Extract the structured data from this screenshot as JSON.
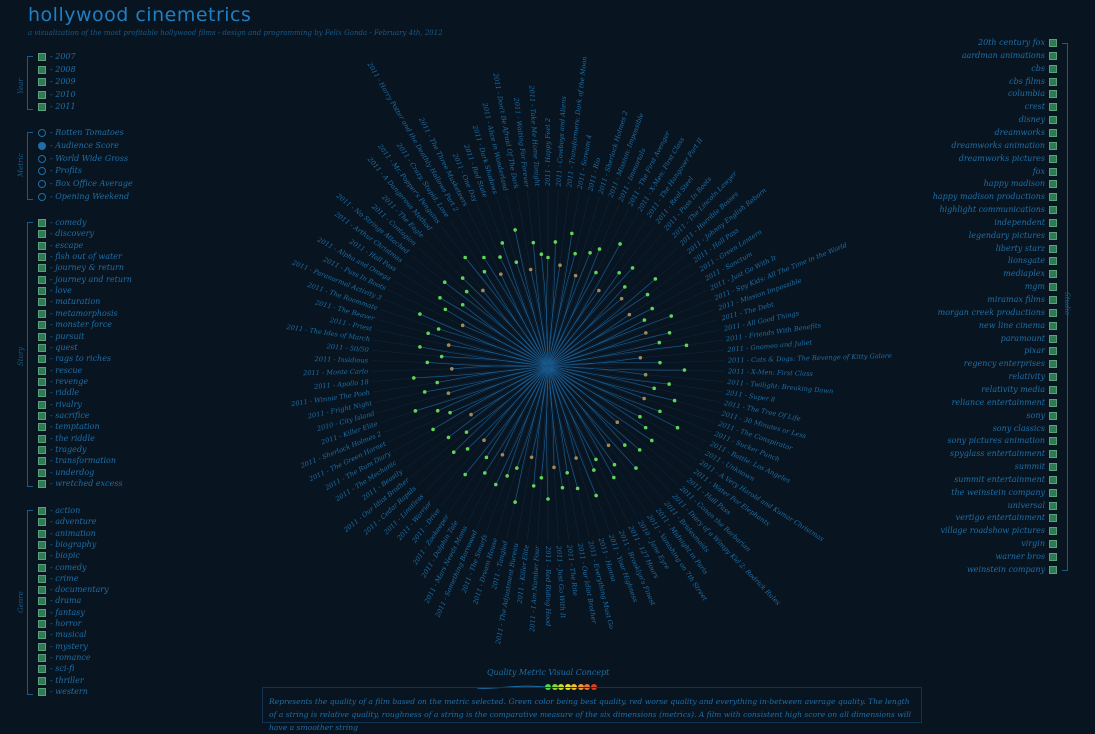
{
  "header": {
    "title": "hollywood cinemetrics",
    "subtitle": "a visualization of the most profitable hollywood films - design and programming by Felix Gonda - February 4th, 2012"
  },
  "filters": {
    "year": {
      "label": "Year",
      "items": [
        "- 2007",
        "- 2008",
        "- 2009",
        "- 2010",
        "- 2011"
      ]
    },
    "metric": {
      "label": "Metric",
      "selected": "- Audience Score",
      "items": [
        "- Rotten Tomatoes",
        "- Audience Score",
        "- World Wide Gross",
        "- Profits",
        "- Box Office Average",
        "- Opening Weekend"
      ]
    },
    "story": {
      "label": "Story",
      "items": [
        "- comedy",
        "- discovery",
        "- escape",
        "- fish out of water",
        "- journey & return",
        "- journey and return",
        "- love",
        "- maturation",
        "- metamorphosis",
        "- monster force",
        "- pursuit",
        "- quest",
        "- rags to riches",
        "- rescue",
        "- revenge",
        "- riddle",
        "- rivalry",
        "- sacrifice",
        "- temptation",
        "- the riddle",
        "- tragedy",
        "- transformation",
        "- underdog",
        "- wretched excess"
      ]
    },
    "genre": {
      "label": "Genre",
      "items": [
        "- action",
        "- adventure",
        "- animation",
        "- biography",
        "- biopic",
        "- comedy",
        "- crime",
        "- documentary",
        "- drama",
        "- fantasy",
        "- horror",
        "- musical",
        "- mystery",
        "- romance",
        "- sci-fi",
        "- thriller",
        "- western"
      ]
    },
    "studio": {
      "label": "Studio",
      "items": [
        "20th century fox",
        "aardman animations",
        "cbs",
        "cbs films",
        "columbia",
        "crest",
        "disney",
        "dreamworks",
        "dreamworks animation",
        "dreamworks pictures",
        "fox",
        "happy madison",
        "happy madison productions",
        "highlight communications",
        "independent",
        "legendary pictures",
        "liberty starz",
        "lionsgate",
        "mediaplex",
        "mgm",
        "miramax films",
        "morgan creek productions",
        "new line cinema",
        "paramount",
        "pixar",
        "regency enterprises",
        "relativity",
        "relativity media",
        "reliance entertainment",
        "sony",
        "sony classics",
        "sony pictures animation",
        "spyglass entertainment",
        "summit",
        "summit entertainment",
        "the weinstein company",
        "universal",
        "vertigo entertainment",
        "village roadshow pictures",
        "virgin",
        "warner bros",
        "weinstein company"
      ]
    }
  },
  "films": [
    "2011 - Happy Feet 2",
    "2011 - Cowboys and Aliens",
    "2011 - Transformers: Dark of the Moon",
    "2011 - Scream 4",
    "2011 - Rio",
    "2011 - Sherlock Holmes 2",
    "2011 - Mission: Impossible",
    "2011 - Immortals",
    "2011 - The First Avenger",
    "2011 - X-Men: First Class",
    "2011 - The Hangover Part II",
    "2011 - Real Steel",
    "2011 - Puss In Boots",
    "2011 - The Lincoln Lawyer",
    "2011 - Horrible Bosses",
    "2011 - Johnny English Reborn",
    "2011 - Hall Pass",
    "2011 - Green Lantern",
    "2011 - Sanctum",
    "2011 - Just Go With It",
    "2011 - Spy Kids: All The Time in the World",
    "2011 - Mission Impossible",
    "2011 - The Debt",
    "2011 - All Good Things",
    "2011 - Friends With Benefits",
    "2011 - Gnomeo and Juliet",
    "2011 - Cats & Dogs: The Revenge of Kitty Galore",
    "2011 - X-Men: First Class",
    "2011 - Twilight: Breaking Dawn",
    "2011 - Super 8",
    "2011 - The Tree Of Life",
    "2011 - 30 Minutes or Less",
    "2011 - The Conspirator",
    "2011 - Sucker Punch",
    "2011 - Battle: Los Angeles",
    "2011 - Unknown",
    "2011 - A Very Harold and Kumar Christmas",
    "2011 - Water For Elephants",
    "2011 - Hall Pass",
    "2011 - Conan the Barbarian",
    "2011 - Diary of a Wimpy Kid 2: Rodrick Rules",
    "2011 - Bridesmaids",
    "2011 - Midnight in Paris",
    "2011 - Vanishing on 7th Street",
    "2010 - Jane Eyre",
    "2011 - 127 Hours",
    "2011 - Brooklyn's Finest",
    "2011 - Your Highness",
    "2011 - Hanna",
    "2011 - Everything Must Go",
    "2011 - Our Idiot Brother",
    "2011 - The Rite",
    "2011 - Just Go With It",
    "2011 - Red Riding Hood",
    "2011 - I Am Number Four",
    "2011 - Killer Elite",
    "2011 - The Adjustment Bureau",
    "2011 - Tangled",
    "2011 - Dream House",
    "2011 - The Smurfs",
    "2011 - Something Borrowed",
    "2011 - Mars Needs Moms",
    "2011 - Dolphin Tale",
    "2011 - Zookeeper",
    "2011 - Drive",
    "2011 - Warrior",
    "2011 - Limitless",
    "2011 - Cedar Rapids",
    "2011 - Our Idiot Brother",
    "2011 - Beastly",
    "2011 - The Mechanic",
    "2011 - The Rum Diary",
    "2011 - The Green Hornet",
    "2011 - Sherlock Holmes 2",
    "2011 - Killer Elite",
    "2010 - City Island",
    "2011 - Fright Night",
    "2011 - Winnie The Pooh",
    "2011 - Apollo 18",
    "2011 - Monte Carlo",
    "2011 - Insidious",
    "2011 - 50/50",
    "2011 - The Ides of March",
    "2011 - Priest",
    "2011 - The Beaver",
    "2011 - The Roommate",
    "2011 - Paranormal Activity 3",
    "2011 - Puss In Boots",
    "2011 - Alpha and Omega",
    "2011 - Hall Pass",
    "2011 - Arthur Christmas",
    "2011 - No Strings Attached",
    "2011 - Contagion",
    "2011 - The Eagle",
    "2011 - A Dangerous Method",
    "2011 - Mr. Popper's Penguins",
    "2011 - Crazy, Stupid, Love",
    "2011 - Harry Potter and the Deathly Hallows Part 2",
    "2011 - The Three Musketeers",
    "2011 - One Day",
    "2011 - Red State",
    "2011 - Dark Shadows",
    "2011 - Alice in Wonderland",
    "2011 - Don't Be Afraid Of The Dark",
    "2011 - Waiting For Forever",
    "2011 - Take Me Home Tonight"
  ],
  "chart_data": {
    "type": "scatter",
    "radial": true,
    "series": [
      {
        "values": [
          0.62,
          0.71,
          0.58,
          0.77,
          0.66,
          0.54,
          0.69,
          0.73,
          0.6,
          0.81,
          0.52,
          0.67,
          0.74,
          0.63,
          0.57,
          0.79,
          0.7,
          0.55,
          0.68,
          0.61,
          0.76,
          0.59,
          0.72,
          0.65,
          0.8,
          0.53,
          0.64,
          0.78,
          0.56,
          0.7,
          0.62,
          0.75,
          0.58,
          0.69,
          0.82,
          0.6,
          0.66,
          0.73,
          0.51,
          0.71,
          0.63,
          0.77,
          0.57,
          0.68,
          0.74,
          0.6,
          0.65,
          0.79,
          0.55,
          0.72,
          0.62,
          0.7,
          0.58,
          0.76,
          0.64,
          0.69,
          0.53,
          0.8,
          0.61,
          0.67,
          0.74,
          0.57,
          0.71,
          0.63,
          0.78,
          0.56,
          0.66,
          0.73,
          0.6,
          0.7,
          0.52,
          0.75,
          0.62,
          0.68,
          0.8,
          0.59,
          0.72,
          0.64,
          0.77,
          0.55,
          0.69,
          0.61,
          0.74,
          0.58,
          0.71,
          0.66,
          0.79,
          0.54,
          0.67,
          0.73,
          0.6,
          0.76,
          0.63,
          0.7,
          0.57,
          0.78,
          0.65,
          0.72,
          0.59,
          0.68,
          0.75,
          0.62,
          0.8,
          0.56,
          0.71,
          0.64
        ]
      }
    ]
  },
  "concept": {
    "title": "Quality Metric Visual Concept",
    "text": "Represents the quality of a film based on the metric selected. Green color being best quality, red worse quality and everything in-between average quality. The length of a string is relative quality, roughness of a string is the comparative measure of the six dimensions (metrics).  A film with consistent high score on all dimensions will have a smoother string",
    "swatches": [
      "#4cd64c",
      "#8ad63a",
      "#c4e02a",
      "#e8e030",
      "#f0c030",
      "#f09a30",
      "#f07030",
      "#e04020"
    ]
  },
  "colors": {
    "background": "#08141f",
    "accent": "#1e6fa8",
    "good": "#5fd65a",
    "average": "#a08a5a"
  }
}
